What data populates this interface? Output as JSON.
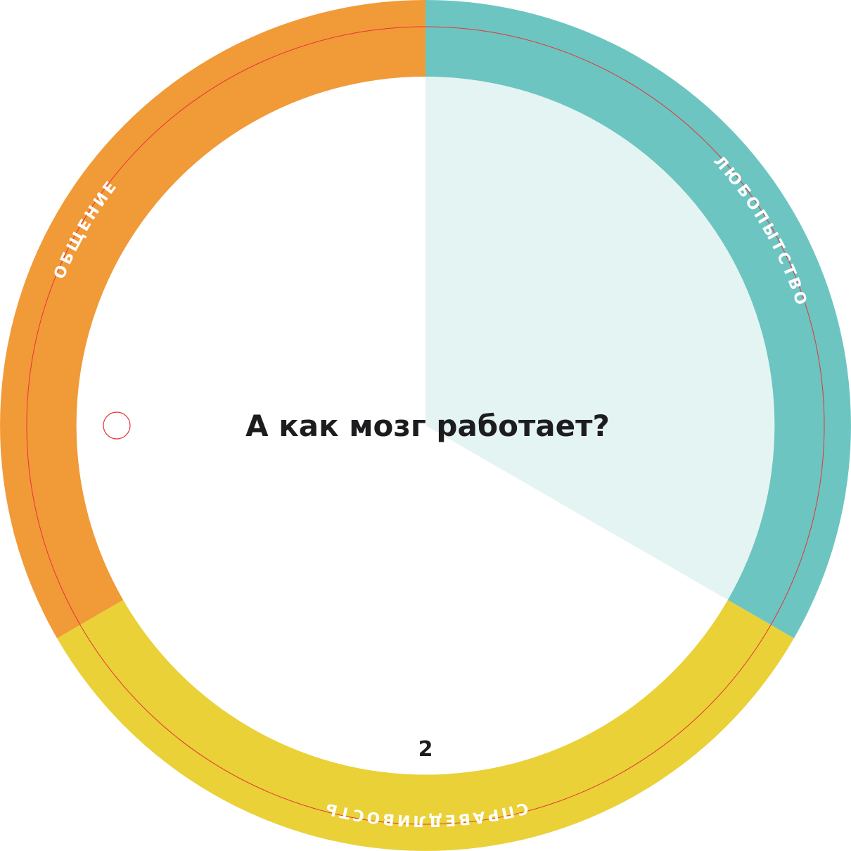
{
  "card": {
    "question": "А как мозг работает?",
    "page_number": "2",
    "segments": [
      {
        "label": "ЛЮБОПЫТСТВО",
        "color": "#6cc5c1",
        "fill": "#e4f4f2"
      },
      {
        "label": "СПРАВЕДЛИВОСТЬ",
        "color": "#e9d137",
        "fill": "#ffffff"
      },
      {
        "label": "ОБЩЕНИЕ",
        "color": "#f19a38",
        "fill": "#ffffff"
      }
    ],
    "cut_line_color": "#e8323a"
  }
}
